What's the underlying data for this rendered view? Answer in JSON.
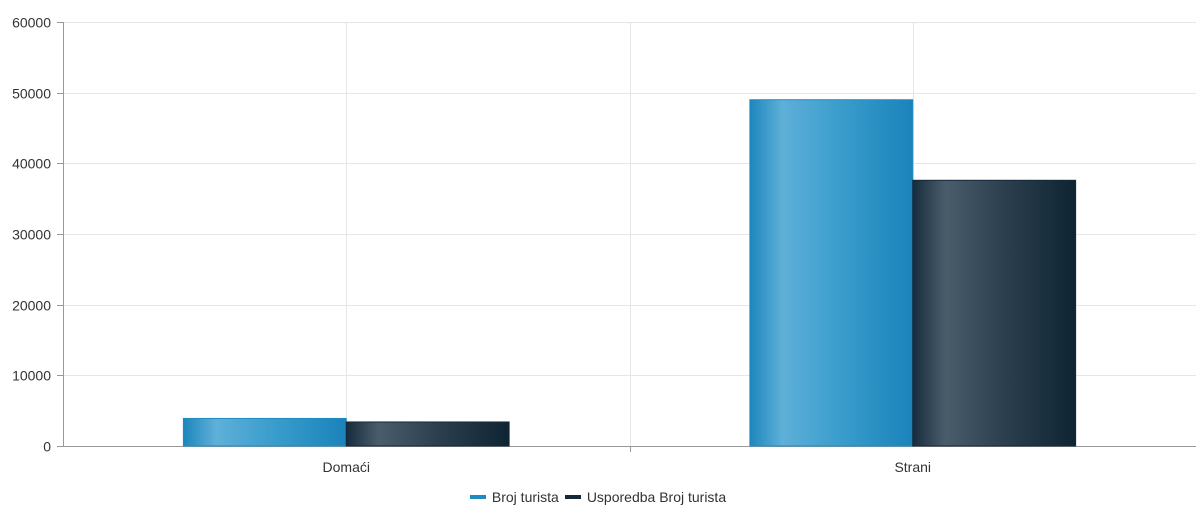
{
  "chart_data": {
    "type": "bar",
    "categories": [
      "Domaći",
      "Strani"
    ],
    "series": [
      {
        "name": "Broj turista",
        "values": [
          3900,
          49000
        ],
        "color": "#1f8cc0"
      },
      {
        "name": "Usporedba Broj turista",
        "values": [
          3400,
          37600
        ],
        "color": "#13293a"
      }
    ],
    "ylim": [
      0,
      60000
    ],
    "yticks": [
      0,
      10000,
      20000,
      30000,
      40000,
      50000,
      60000
    ],
    "grid": true,
    "legend_position": "bottom-center"
  }
}
